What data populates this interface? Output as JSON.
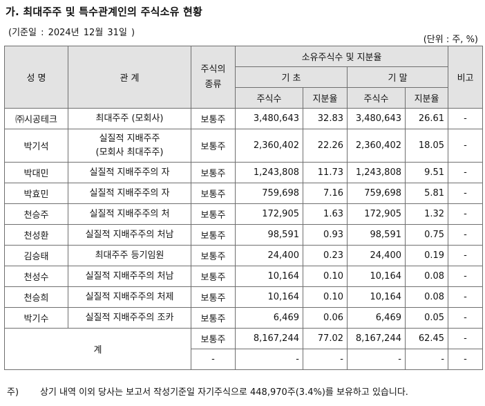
{
  "title": "가. 최대주주 및 특수관계인의 주식소유 현황",
  "base_date": "(기준일 :        2024년 12월 31일      )",
  "unit": "(단위 : 주, %)",
  "headers": {
    "name": "성 명",
    "relation": "관 계",
    "stock_type": "주식의\n종류",
    "ownership": "소유주식수 및 지분율",
    "beginning": "기 초",
    "ending": "기 말",
    "shares": "주식수",
    "ratio": "지분율",
    "remarks": "비고"
  },
  "rows": [
    {
      "name": "㈜시공테크",
      "relation": "최대주주 (모회사)",
      "type": "보통주",
      "begin_shares": "3,480,643",
      "begin_ratio": "32.83",
      "end_shares": "3,480,643",
      "end_ratio": "26.61",
      "remarks": "-"
    },
    {
      "name": "박기석",
      "relation": "실질적 지배주주\n(모회사 최대주주)",
      "type": "보통주",
      "begin_shares": "2,360,402",
      "begin_ratio": "22.26",
      "end_shares": "2,360,402",
      "end_ratio": "18.05",
      "remarks": "-"
    },
    {
      "name": "박대민",
      "relation": "실질적 지배주주의 자",
      "type": "보통주",
      "begin_shares": "1,243,808",
      "begin_ratio": "11.73",
      "end_shares": "1,243,808",
      "end_ratio": "9.51",
      "remarks": "-"
    },
    {
      "name": "박효민",
      "relation": "실질적 지배주주의 자",
      "type": "보통주",
      "begin_shares": "759,698",
      "begin_ratio": "7.16",
      "end_shares": "759,698",
      "end_ratio": "5.81",
      "remarks": "-"
    },
    {
      "name": "천승주",
      "relation": "실질적 지배주주의 처",
      "type": "보통주",
      "begin_shares": "172,905",
      "begin_ratio": "1.63",
      "end_shares": "172,905",
      "end_ratio": "1.32",
      "remarks": "-"
    },
    {
      "name": "천성환",
      "relation": "실질적 지배주주의 처남",
      "type": "보통주",
      "begin_shares": "98,591",
      "begin_ratio": "0.93",
      "end_shares": "98,591",
      "end_ratio": "0.75",
      "remarks": "-"
    },
    {
      "name": "김승태",
      "relation": "최대주주 등기임원",
      "type": "보통주",
      "begin_shares": "24,400",
      "begin_ratio": "0.23",
      "end_shares": "24,400",
      "end_ratio": "0.19",
      "remarks": "-"
    },
    {
      "name": "천성수",
      "relation": "실질적 지배주주의 처남",
      "type": "보통주",
      "begin_shares": "10,164",
      "begin_ratio": "0.10",
      "end_shares": "10,164",
      "end_ratio": "0.08",
      "remarks": "-"
    },
    {
      "name": "천승희",
      "relation": "실질적 지배주주의 처제",
      "type": "보통주",
      "begin_shares": "10,164",
      "begin_ratio": "0.10",
      "end_shares": "10,164",
      "end_ratio": "0.08",
      "remarks": "-"
    },
    {
      "name": "박기수",
      "relation": "실질적 지배주주의 조카",
      "type": "보통주",
      "begin_shares": "6,469",
      "begin_ratio": "0.06",
      "end_shares": "6,469",
      "end_ratio": "0.05",
      "remarks": "-"
    }
  ],
  "total": {
    "label": "계",
    "rows": [
      {
        "type": "보통주",
        "begin_shares": "8,167,244",
        "begin_ratio": "77.02",
        "end_shares": "8,167,244",
        "end_ratio": "62.45",
        "remarks": "-"
      },
      {
        "type": "-",
        "begin_shares": "-",
        "begin_ratio": "-",
        "end_shares": "-",
        "end_ratio": "-",
        "remarks": "-"
      }
    ]
  },
  "note": {
    "mark": "주)",
    "text": "상기 내역 이외 당사는 보고서 작성기준일 자기주식으로 448,970주(3.4%)를 보유하고 있습니다."
  }
}
